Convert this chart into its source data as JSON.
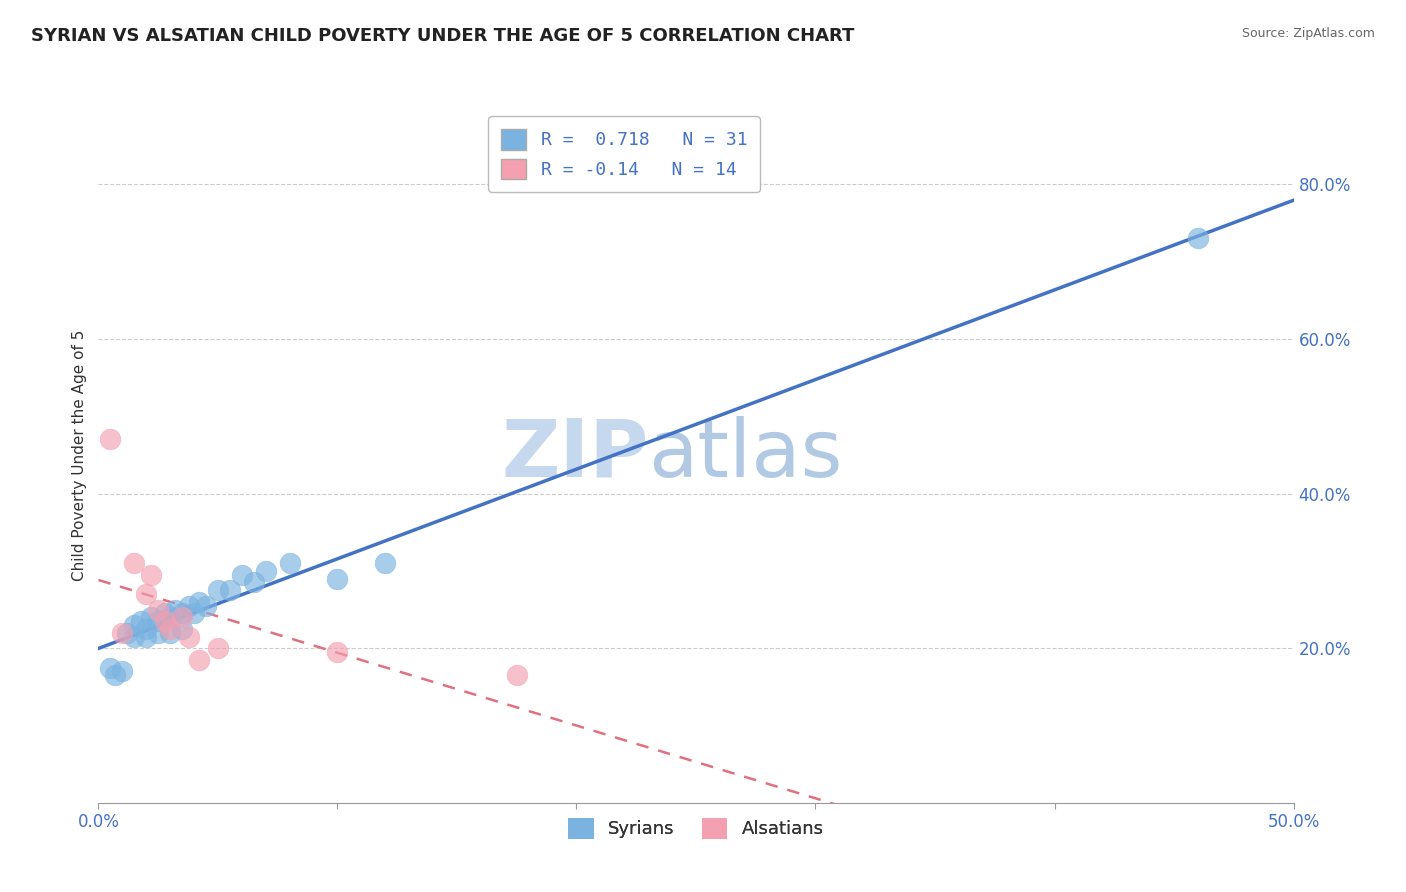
{
  "title": "SYRIAN VS ALSATIAN CHILD POVERTY UNDER THE AGE OF 5 CORRELATION CHART",
  "source": "Source: ZipAtlas.com",
  "ylabel": "Child Poverty Under the Age of 5",
  "xlim": [
    0.0,
    0.5
  ],
  "ylim": [
    0.0,
    0.9
  ],
  "xticks": [
    0.0,
    0.1,
    0.2,
    0.3,
    0.4,
    0.5
  ],
  "yticks_right": [
    0.2,
    0.4,
    0.6,
    0.8
  ],
  "syrian_color": "#7ab3e0",
  "alsatian_color": "#f4a0b0",
  "syrian_line_color": "#4472c4",
  "alsatian_line_color": "#e07080",
  "watermark_color_zip": "#c8d8ec",
  "watermark_color_atlas": "#b8cce0",
  "R_syrian": 0.718,
  "N_syrian": 31,
  "R_alsatian": -0.14,
  "N_alsatian": 14,
  "syrian_x": [
    0.005,
    0.007,
    0.01,
    0.012,
    0.015,
    0.015,
    0.018,
    0.02,
    0.02,
    0.022,
    0.025,
    0.025,
    0.028,
    0.03,
    0.03,
    0.032,
    0.035,
    0.035,
    0.038,
    0.04,
    0.042,
    0.045,
    0.05,
    0.055,
    0.06,
    0.065,
    0.07,
    0.08,
    0.1,
    0.12,
    0.46
  ],
  "syrian_y": [
    0.175,
    0.165,
    0.17,
    0.22,
    0.215,
    0.23,
    0.235,
    0.215,
    0.225,
    0.24,
    0.22,
    0.235,
    0.245,
    0.22,
    0.24,
    0.25,
    0.225,
    0.245,
    0.255,
    0.245,
    0.26,
    0.255,
    0.275,
    0.275,
    0.295,
    0.285,
    0.3,
    0.31,
    0.29,
    0.31,
    0.73
  ],
  "alsatian_x": [
    0.005,
    0.01,
    0.015,
    0.02,
    0.022,
    0.025,
    0.028,
    0.03,
    0.035,
    0.038,
    0.042,
    0.05,
    0.1,
    0.175
  ],
  "alsatian_y": [
    0.47,
    0.22,
    0.31,
    0.27,
    0.295,
    0.25,
    0.235,
    0.225,
    0.24,
    0.215,
    0.185,
    0.2,
    0.195,
    0.165
  ],
  "background_color": "#ffffff",
  "plot_bg_color": "#ffffff",
  "grid_color": "#cccccc",
  "title_fontsize": 13,
  "axis_label_fontsize": 11,
  "tick_fontsize": 12
}
